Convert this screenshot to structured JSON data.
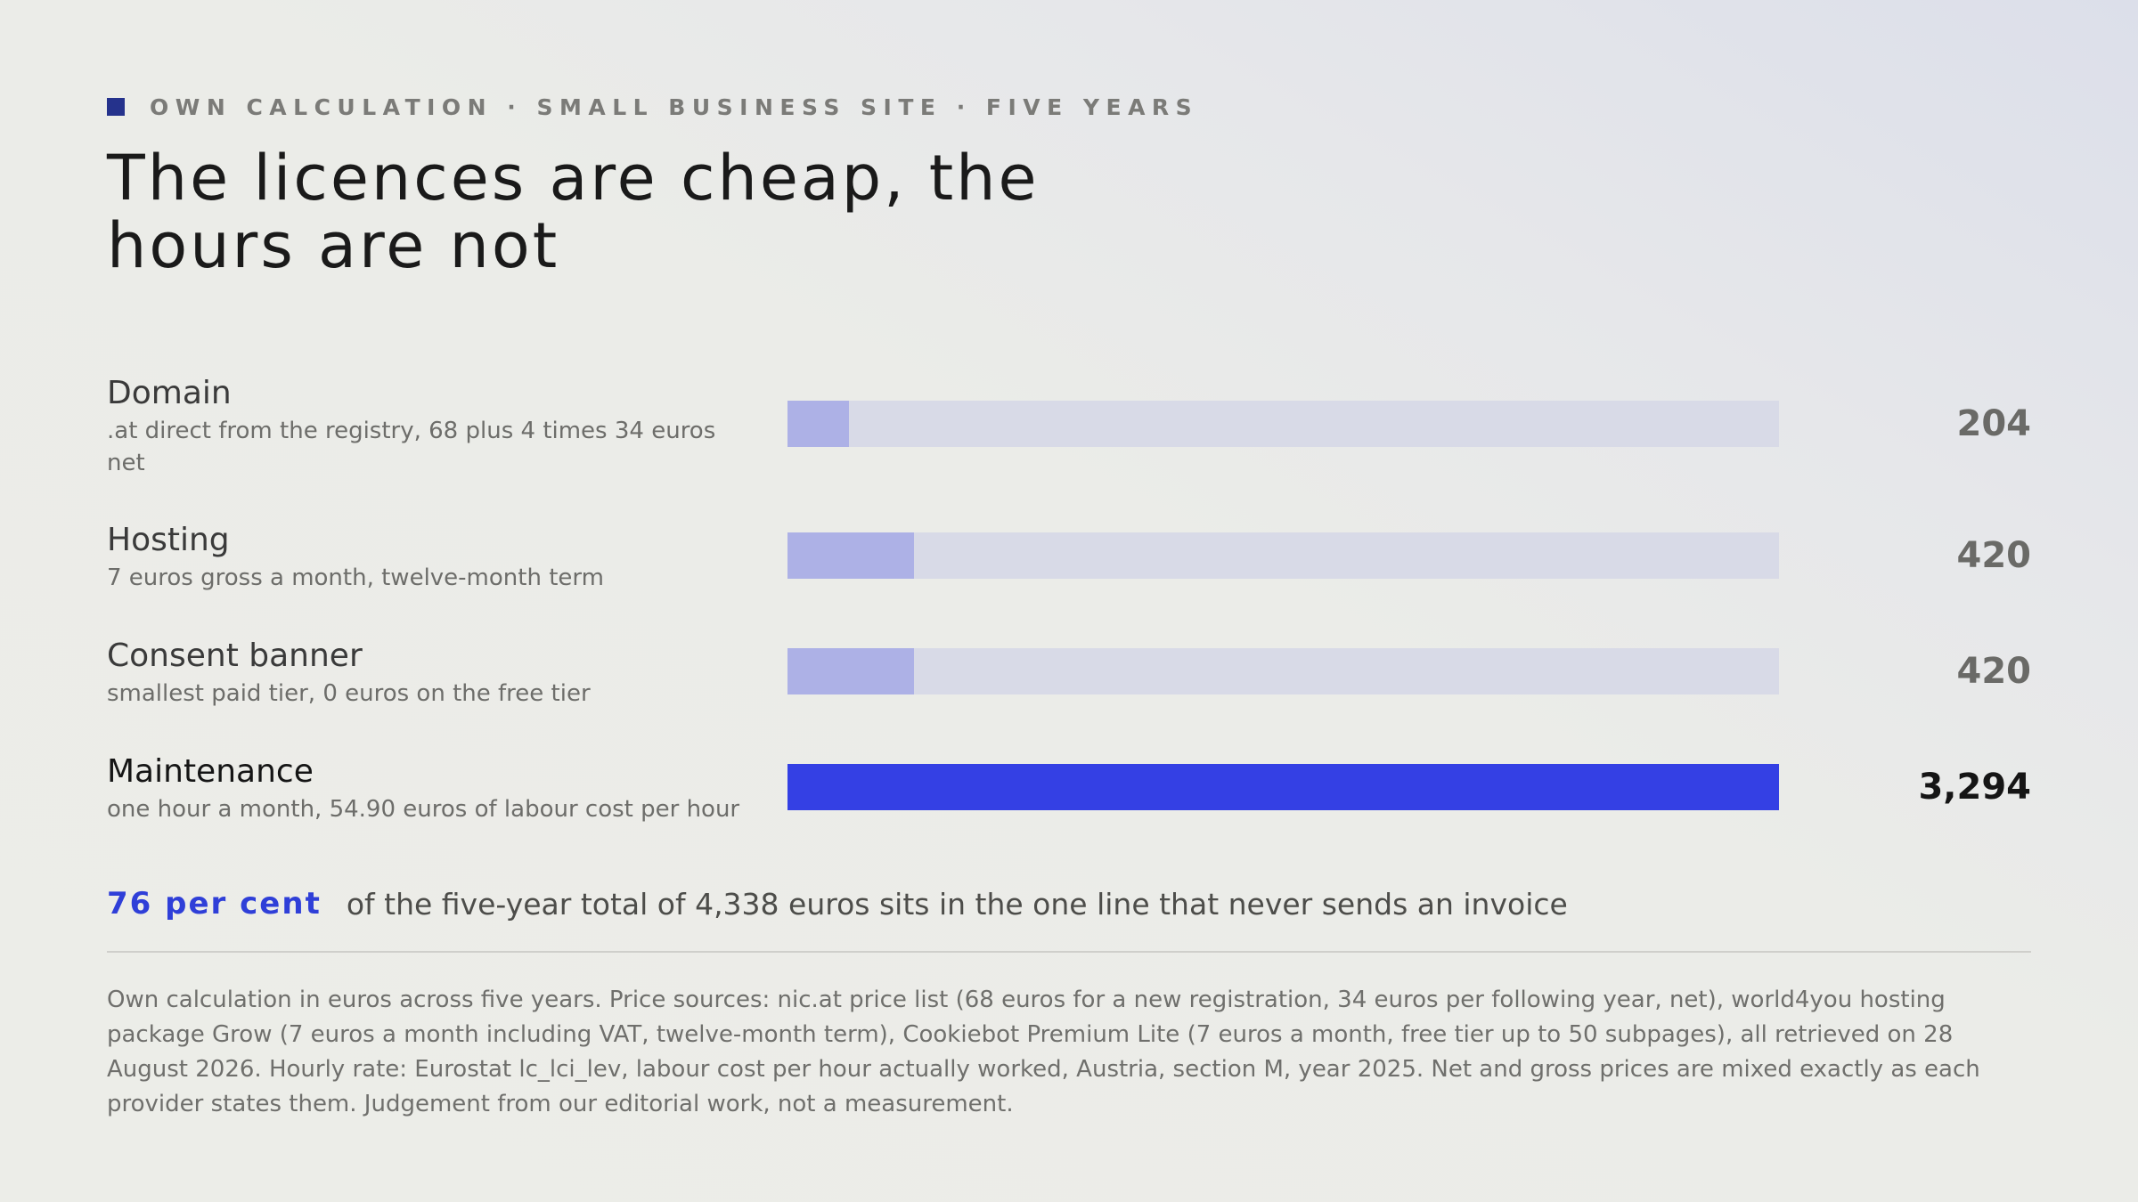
{
  "kicker": "OWN CALCULATION · SMALL BUSINESS SITE · FIVE YEARS",
  "headline": "The licences are cheap, the hours are not",
  "colors": {
    "accent": "#3440e4",
    "muted_bar": "#adb1e6",
    "track": "#d8dae7",
    "kicker_square": "#25328c"
  },
  "chart_data": {
    "type": "bar",
    "orientation": "horizontal",
    "categories": [
      "Domain",
      "Hosting",
      "Consent banner",
      "Maintenance"
    ],
    "values": [
      204,
      420,
      420,
      3294
    ],
    "value_labels": [
      "204",
      "420",
      "420",
      "3,294"
    ],
    "descriptions": [
      ".at direct from the registry, 68 plus 4 times 34 euros net",
      "7 euros gross a month, twelve-month term",
      "smallest paid tier, 0 euros on the free tier",
      "one hour a month, 54.90 euros of labour cost per hour"
    ],
    "highlight": "Maintenance",
    "xlim": [
      0,
      3294
    ],
    "grid": false,
    "legend": "none"
  },
  "takeaway": {
    "stat": "76 per cent",
    "text": "of the five-year total of 4,338 euros sits in the one line that never sends an invoice"
  },
  "footnote": "Own calculation in euros across five years. Price sources: nic.at price list (68 euros for a new registration, 34 euros per following year, net), world4you hosting package Grow (7 euros a month including VAT, twelve-month term), Cookiebot Premium Lite (7 euros a month, free tier up to 50 subpages), all retrieved on 28 August 2026. Hourly rate: Eurostat lc_lci_lev, labour cost per hour actually worked, Austria, section M, year 2025. Net and gross prices are mixed exactly as each provider states them. Judgement from our editorial work, not a measurement."
}
